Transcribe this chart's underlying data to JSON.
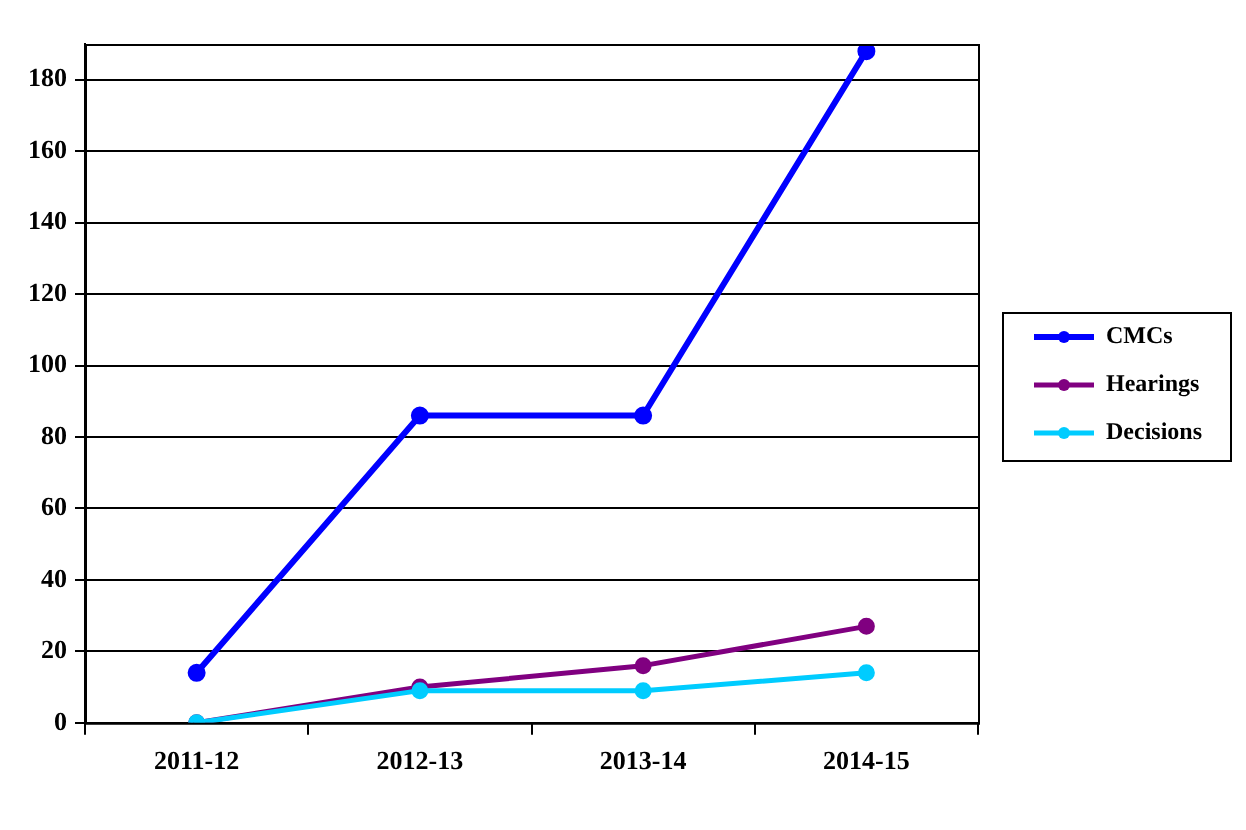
{
  "chart_data": {
    "type": "line",
    "categories": [
      "2011-12",
      "2012-13",
      "2013-14",
      "2014-15"
    ],
    "series": [
      {
        "name": "CMCs",
        "color": "#0000ff",
        "values": [
          14,
          86,
          86,
          188
        ]
      },
      {
        "name": "Hearings",
        "color": "#800080",
        "values": [
          0,
          10,
          16,
          27
        ]
      },
      {
        "name": "Decisions",
        "color": "#00ccff",
        "values": [
          0,
          9,
          9,
          14
        ]
      }
    ],
    "ylim": [
      0,
      190
    ],
    "yticks": [
      0,
      20,
      40,
      60,
      80,
      100,
      120,
      140,
      160,
      180
    ],
    "grid": "y",
    "legend": "right",
    "marker": "circle",
    "line_style": "solid"
  }
}
